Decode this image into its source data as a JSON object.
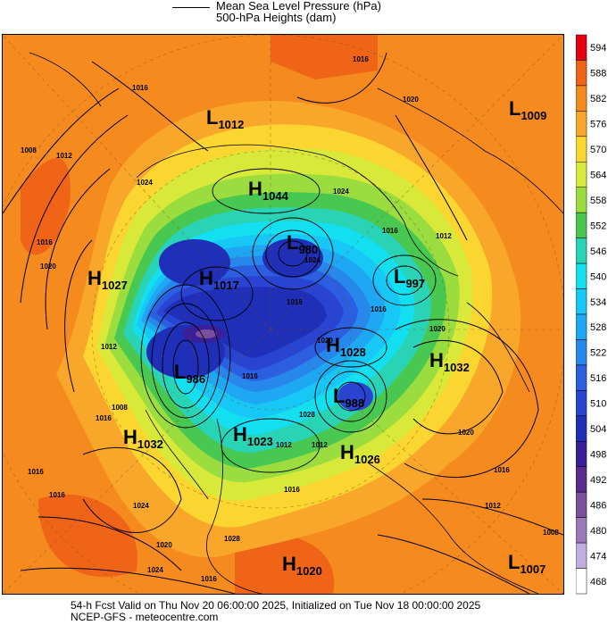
{
  "header": {
    "line1": "Mean Sea Level Pressure (hPa)",
    "line2": "500-hPa Heights (dam)"
  },
  "colorbar": {
    "levels": [
      "594",
      "588",
      "582",
      "576",
      "570",
      "564",
      "558",
      "552",
      "546",
      "540",
      "534",
      "528",
      "522",
      "516",
      "510",
      "504",
      "498",
      "492",
      "486",
      "480",
      "474",
      "468"
    ],
    "colors": [
      "#e60012",
      "#f06418",
      "#f58b1e",
      "#f9a72b",
      "#fbd530",
      "#d8e93a",
      "#9bdc3f",
      "#48c851",
      "#29d3b6",
      "#12e0f0",
      "#17c8f6",
      "#1ea8f3",
      "#2787ea",
      "#2b5ee0",
      "#2a44d2",
      "#1f2fb8",
      "#3a1f9a",
      "#5a2a8f",
      "#7b4e9e",
      "#9a79b6",
      "#c3ade0",
      "#ffffff"
    ]
  },
  "map": {
    "centers": [
      {
        "type": "L",
        "value": "1012"
      },
      {
        "type": "L",
        "value": "1009"
      },
      {
        "type": "H",
        "value": "1044"
      },
      {
        "type": "L",
        "value": "980"
      },
      {
        "type": "H",
        "value": "1027"
      },
      {
        "type": "H",
        "value": "1017"
      },
      {
        "type": "L",
        "value": "997"
      },
      {
        "type": "H",
        "value": "1028"
      },
      {
        "type": "H",
        "value": "1032"
      },
      {
        "type": "L",
        "value": "986"
      },
      {
        "type": "L",
        "value": "988"
      },
      {
        "type": "H",
        "value": "1032"
      },
      {
        "type": "H",
        "value": "1023"
      },
      {
        "type": "H",
        "value": "1026"
      },
      {
        "type": "H",
        "value": "1020"
      },
      {
        "type": "L",
        "value": "1007"
      }
    ],
    "isobar_labels": [
      "1016",
      "1016",
      "1020",
      "1008",
      "1012",
      "1024",
      "1016",
      "1020",
      "1024",
      "1016",
      "1012",
      "1020",
      "1016",
      "1012",
      "1008",
      "1016",
      "1024",
      "1020",
      "1016",
      "1016",
      "1012",
      "1016",
      "1024",
      "1016",
      "1020",
      "1028",
      "1020",
      "1016",
      "1012",
      "1008",
      "1016",
      "1024",
      "1028",
      "1012",
      "1016"
    ],
    "colors": {
      "ocean_orange": "#f58b1e",
      "coast": "#000000"
    }
  },
  "footer": {
    "line1": "54-h Fcst Valid on Thu Nov 20 06:00:00 2025, Initialized on Tue Nov 18 00:00:00 2025",
    "line2": "NCEP-GFS  -  meteocentre.com"
  }
}
